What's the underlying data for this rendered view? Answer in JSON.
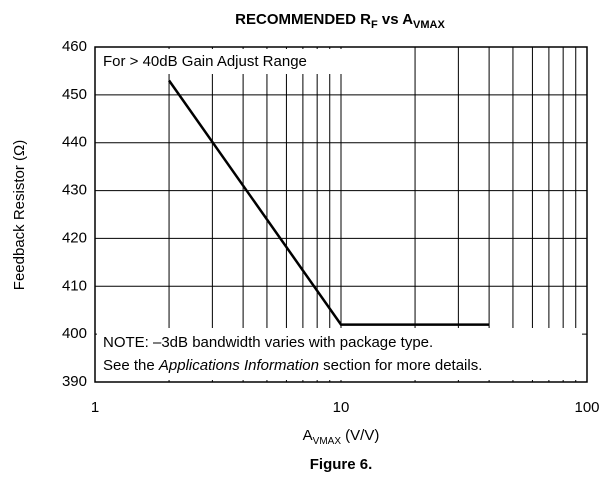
{
  "chart_data": {
    "type": "line",
    "title": [
      "RECOMMENDED R",
      "F",
      " vs A",
      "VMAX"
    ],
    "xlabel": [
      "A",
      "VMAX",
      " (V/V)"
    ],
    "ylabel": "Feedback Resistor (Ω)",
    "caption": "Figure 6.",
    "annotation": "For > 40dB Gain Adjust Range",
    "note": [
      [
        "NOTE: –3dB bandwidth varies with package type."
      ],
      [
        "See the ",
        "Applications Information",
        " section for more details."
      ]
    ],
    "x": [
      2,
      10,
      40
    ],
    "series": [
      {
        "color": "#000000",
        "values": [
          453,
          402,
          402
        ]
      }
    ],
    "xscale": "log",
    "xlim": [
      1,
      100
    ],
    "xticks": [
      1,
      10,
      100
    ],
    "minor_xticks": [
      2,
      3,
      4,
      5,
      6,
      7,
      8,
      9,
      20,
      30,
      40,
      50,
      60,
      70,
      80,
      90
    ],
    "ylim": [
      390,
      460
    ],
    "yticks": [
      390,
      400,
      410,
      420,
      430,
      440,
      450,
      460
    ],
    "grid": true
  }
}
